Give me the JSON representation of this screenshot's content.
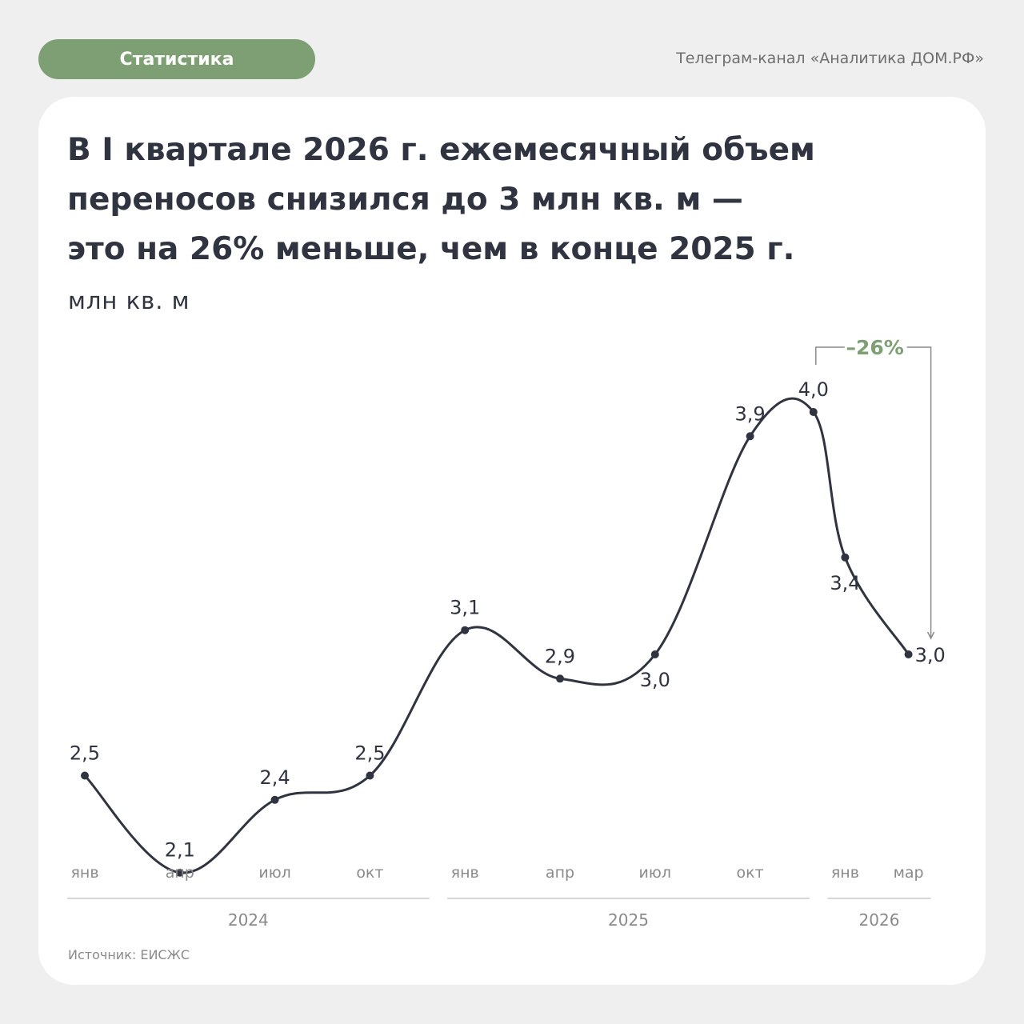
{
  "header": {
    "tag_label": "Статистика",
    "channel": "Телеграм-канал «Аналитика ДОМ.РФ»"
  },
  "colors": {
    "accent": "#7d9f73",
    "line": "#2f3440",
    "muted": "#8a8a8a"
  },
  "chart_data": {
    "type": "line",
    "title": "В I квартале 2026 г. ежемесячный объем\nпереносов снизился до 3 млн кв. м —\nэто на 26% меньше, чем в конце 2025 г.",
    "ylabel": "млн кв. м",
    "ylim": [
      2.0,
      4.0
    ],
    "x": [
      "2024-01",
      "2024-04",
      "2024-07",
      "2024-10",
      "2025-01",
      "2025-04",
      "2025-07",
      "2025-10",
      "2025-12",
      "2026-01",
      "2026-03"
    ],
    "series": [
      {
        "values": [
          2.5,
          2.1,
          2.4,
          2.5,
          3.1,
          2.9,
          3.0,
          3.9,
          4.0,
          3.4,
          3.0
        ],
        "labels": [
          "2,5",
          "2,1",
          "2,4",
          "2,5",
          "3,1",
          "2,9",
          "3,0",
          "3,9",
          "4,0",
          "3,4",
          "3,0"
        ]
      }
    ],
    "x_tick_labels": [
      "янв",
      "апр",
      "июл",
      "окт",
      "янв",
      "апр",
      "июл",
      "окт",
      "янв",
      "мар"
    ],
    "year_labels": [
      "2024",
      "2025",
      "2026"
    ],
    "annotation": {
      "text": "–26%",
      "from": "2025-12",
      "to": "2026-03"
    },
    "legend": "none",
    "grid": false
  },
  "footer": {
    "source": "Источник: ЕИСЖС"
  }
}
